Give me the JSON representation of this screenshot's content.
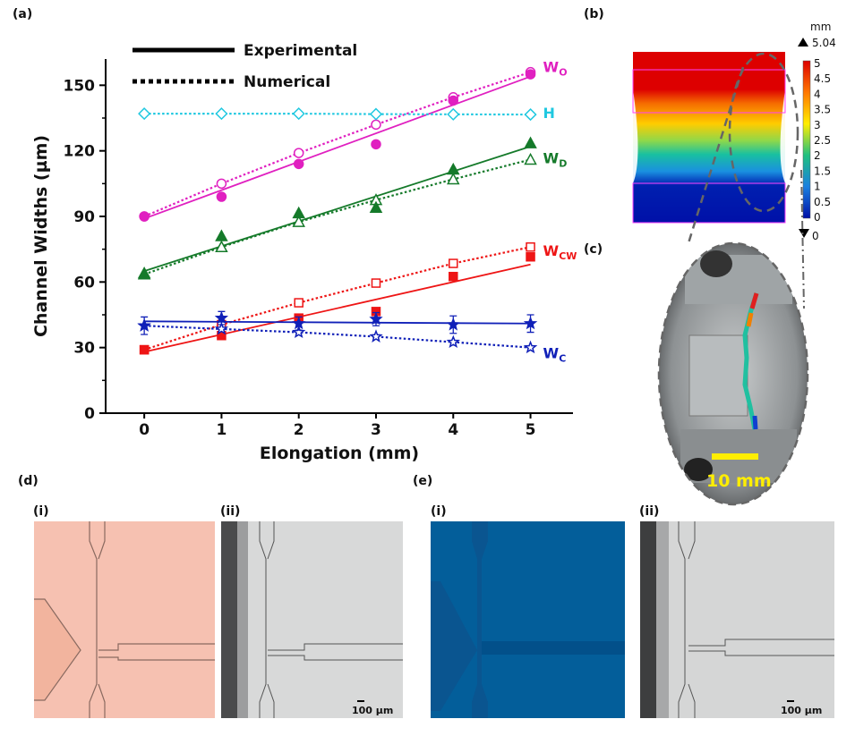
{
  "panels": {
    "a": "(a)",
    "b": "(b)",
    "c": "(c)",
    "d": "(d)",
    "e": "(e)",
    "i": "(i)",
    "ii": "(ii)"
  },
  "legend": {
    "experimental": "Experimental",
    "numerical": "Numerical"
  },
  "colorbar": {
    "unit": "mm",
    "max_label": "5.04",
    "min_label": "0",
    "ticks": [
      "5",
      "4.5",
      "4",
      "3.5",
      "3",
      "2.5",
      "2",
      "1.5",
      "1",
      "0.5",
      "0"
    ]
  },
  "photo_scale": "10 mm",
  "micro_scale": "100 µm",
  "chart_data": {
    "type": "line",
    "xlabel": "Elongation (mm)",
    "ylabel": "Channel Widths (µm)",
    "x": [
      0,
      1,
      2,
      3,
      4,
      5
    ],
    "xticks": [
      "0",
      "1",
      "2",
      "3",
      "4",
      "5"
    ],
    "yticks": [
      "0",
      "30",
      "60",
      "90",
      "120",
      "150"
    ],
    "xlim": [
      -0.5,
      5.55
    ],
    "ylim": [
      0,
      162
    ],
    "series": [
      {
        "name": "WO",
        "label": "W",
        "sub": "O",
        "color": "#e020c0",
        "exp": [
          90,
          99,
          114,
          123,
          143,
          155
        ],
        "exp_fit": [
          89,
          154
        ],
        "num": [
          90,
          105,
          119,
          132,
          144.5,
          156
        ],
        "exp_marker": "circle"
      },
      {
        "name": "H",
        "label": "H",
        "sub": "",
        "color": "#20c8e0",
        "num": [
          137,
          137,
          137,
          136.8,
          136.7,
          136.6
        ],
        "num_marker": "diamond"
      },
      {
        "name": "WD",
        "label": "W",
        "sub": "D",
        "color": "#157a2a",
        "exp": [
          64,
          81,
          91.5,
          94,
          111.5,
          123.5
        ],
        "exp_fit": [
          65,
          122
        ],
        "num": [
          63.5,
          76,
          87.5,
          97.5,
          107,
          116
        ],
        "exp_marker": "triangle"
      },
      {
        "name": "WCW",
        "label": "W",
        "sub": "CW",
        "color": "#ee1515",
        "exp": [
          29,
          35.5,
          43.5,
          46.5,
          62.5,
          71.5
        ],
        "exp_fit": [
          28,
          68
        ],
        "num": [
          29,
          40.5,
          50.5,
          59.5,
          68.5,
          76
        ],
        "exp_marker": "square"
      },
      {
        "name": "WC",
        "label": "W",
        "sub": "C",
        "color": "#1020b8",
        "exp": [
          40,
          43.5,
          41,
          43,
          40.5,
          41
        ],
        "exp_err": [
          4,
          3,
          3,
          3,
          4,
          4
        ],
        "exp_fit": [
          42,
          41
        ],
        "num": [
          40,
          38.5,
          37,
          35,
          32.5,
          30
        ],
        "exp_marker": "star"
      }
    ]
  }
}
